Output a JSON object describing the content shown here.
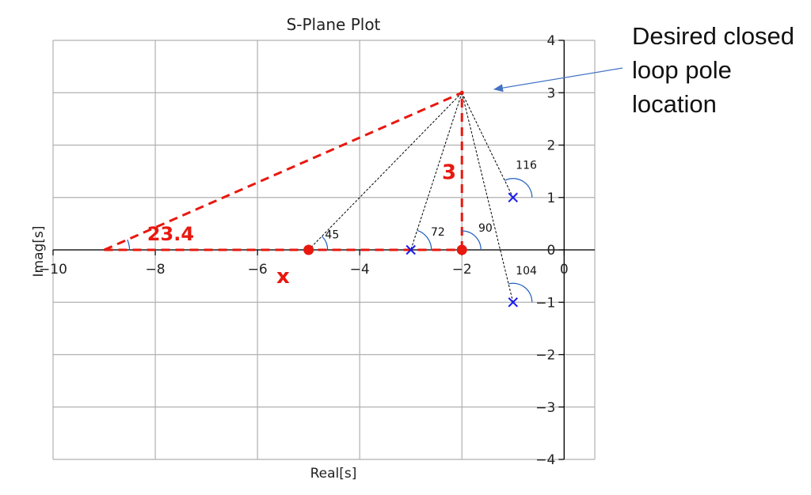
{
  "chart_data": {
    "type": "scatter",
    "title": "S-Plane Plot",
    "xlabel": "Real[s]",
    "ylabel": "Imag[s]",
    "xlim": [
      -10,
      0.6
    ],
    "ylim": [
      -4,
      4
    ],
    "xticks": [
      -10,
      -8,
      -6,
      -4,
      -2,
      0
    ],
    "yticks": [
      -4,
      -3,
      -2,
      -1,
      0,
      1,
      2,
      3,
      4
    ],
    "grid": true,
    "poles": [
      {
        "x": -1,
        "y": 1
      },
      {
        "x": -1,
        "y": -1
      },
      {
        "x": -3,
        "y": 0
      }
    ],
    "points": [
      {
        "x": -5,
        "y": 0
      },
      {
        "x": -2,
        "y": 0
      },
      {
        "x": -2,
        "y": 3
      }
    ],
    "desired_pole": {
      "x": -2,
      "y": 3
    },
    "triangle_apex": {
      "x": -9,
      "y": 0
    },
    "angle_labels": [
      {
        "value": "116",
        "x": -0.74,
        "y": 1.55
      },
      {
        "value": "104",
        "x": -0.74,
        "y": -0.47
      },
      {
        "value": "90",
        "x": -1.54,
        "y": 0.35
      },
      {
        "value": "72",
        "x": -2.47,
        "y": 0.27
      },
      {
        "value": "45",
        "x": -4.54,
        "y": 0.22
      }
    ],
    "annotations": {
      "hypotenuse_label": "23.4",
      "height_label": "3",
      "unknown_label": "x",
      "callout": [
        "Desired closed",
        "loop pole",
        "location"
      ]
    },
    "colors": {
      "construction": "#e8180f",
      "pole_marker": "#1a1aee",
      "arc": "#1f5fbf",
      "dotted": "#000000",
      "arrow": "#4472c4"
    }
  }
}
